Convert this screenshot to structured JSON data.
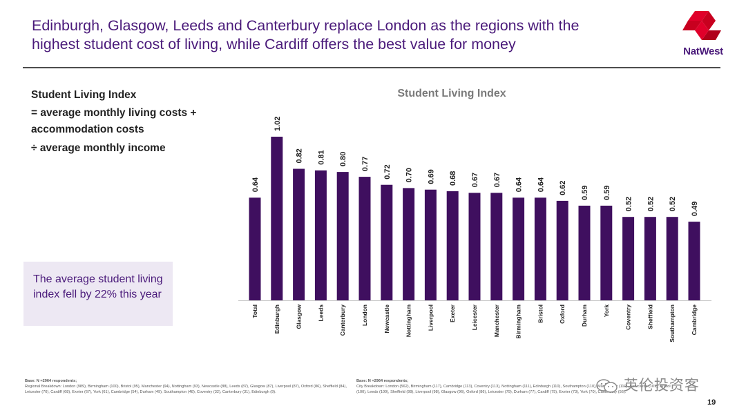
{
  "header": {
    "title_line1": "Edinburgh, Glasgow, Leeds and Canterbury replace London as the regions with the",
    "title_line2": "highest student cost of living, while Cardiff offers the best value for money",
    "logo_text": "NatWest",
    "logo_icon": "natwest-cubes-icon"
  },
  "formula": {
    "title": "Student Living Index",
    "line1": "= average monthly living costs +",
    "line2": "accommodation costs",
    "line3": "÷ average monthly income"
  },
  "callout": {
    "text": "The average student living index fell by 22% this year"
  },
  "chart_data": {
    "type": "bar",
    "title": "Student Living Index",
    "xlabel": "",
    "ylabel": "",
    "categories": [
      "Total",
      "Edinburgh",
      "Glasgow",
      "Leeds",
      "Canterbury",
      "London",
      "Newcastle",
      "Nottingham",
      "Liverpool",
      "Exeter",
      "Leicester",
      "Manchester",
      "Birmingham",
      "Bristol",
      "Oxford",
      "Durham",
      "York",
      "Coventry",
      "Sheffield",
      "Southampton",
      "Cambridge"
    ],
    "values": [
      0.64,
      1.02,
      0.82,
      0.81,
      0.8,
      0.77,
      0.72,
      0.7,
      0.69,
      0.68,
      0.67,
      0.67,
      0.64,
      0.64,
      0.62,
      0.59,
      0.59,
      0.52,
      0.52,
      0.52,
      0.49
    ],
    "labels": [
      "0.64",
      "1.02",
      "0.82",
      "0.81",
      "0.80",
      "0.77",
      "0.72",
      "0.70",
      "0.69",
      "0.68",
      "0.67",
      "0.67",
      "0.64",
      "0.64",
      "0.62",
      "0.59",
      "0.59",
      "0.52",
      "0.52",
      "0.52",
      "0.49"
    ],
    "ylim": [
      0,
      1.02
    ],
    "grid": false,
    "bar_color": "#3f0f5f"
  },
  "footnotes": {
    "left_base": "Base: N =2964 respondents;",
    "left_text": "Regional Breakdown: London (989), Birmingham (100), Bristol (95), Manchester (94), Nottingham (93), Newcastle (88), Leeds (87), Glasgow (87), Liverpool (87), Oxford (86), Sheffield (84), Leicester (70), Cardiff (68), Exeter (67), York (61), Cambridge (54), Durham (49), Southampton (48), Coventry (32), Canterbury (31), Edinburgh (9).",
    "right_base": "Base: N =2964 respondents;",
    "right_text": "City Breakdown: London (562), Birmingham (117), Cambridge (113), Coventry (113), Nottingham (111), Edinburgh (110), Southampton (110), Manchester (110), Newcastle (101), Bristol (100), Leeds (100), Sheffield (99), Liverpool (98), Glasgow (96), Oxford (86), Leicester (79), Durham (77), Cardiff (75), Exeter (73), York (70), Canterbury (56)."
  },
  "watermark": "英伦投资客",
  "page_number": "19"
}
